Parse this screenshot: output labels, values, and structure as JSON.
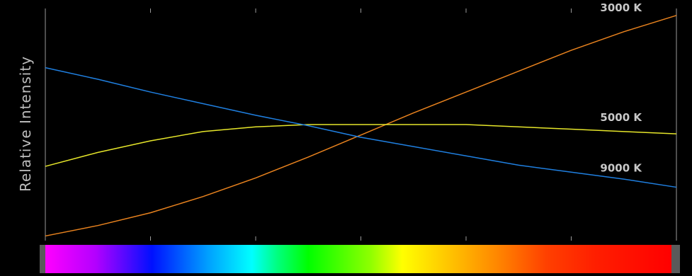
{
  "chart_data": {
    "type": "line",
    "ylabel": "Relative Intensity",
    "xlabel": "",
    "title": "",
    "xlim": [
      0,
      6
    ],
    "ylim": [
      0,
      10
    ],
    "x_ticks": 7,
    "grid": false,
    "background": "#000000",
    "spectrum_bar": true,
    "series": [
      {
        "name": "3000 K",
        "color": "#e8821e",
        "x": [
          0,
          0.5,
          1,
          1.5,
          2,
          2.5,
          3,
          3.5,
          4,
          4.5,
          5,
          5.5,
          6
        ],
        "y": [
          0.2,
          0.65,
          1.2,
          1.9,
          2.7,
          3.6,
          4.55,
          5.5,
          6.4,
          7.3,
          8.2,
          9.0,
          9.7
        ]
      },
      {
        "name": "5000 K",
        "color": "#e6e62a",
        "x": [
          0,
          0.5,
          1,
          1.5,
          2,
          2.5,
          3,
          3.5,
          4,
          4.5,
          5,
          5.5,
          6
        ],
        "y": [
          3.2,
          3.8,
          4.3,
          4.7,
          4.9,
          5.0,
          5.0,
          5.0,
          5.0,
          4.9,
          4.8,
          4.7,
          4.6
        ]
      },
      {
        "name": "9000 K",
        "color": "#1f7fe0",
        "x": [
          0,
          0.5,
          1,
          1.5,
          2,
          2.5,
          3,
          3.5,
          4,
          4.5,
          5,
          5.5,
          6
        ],
        "y": [
          7.45,
          6.95,
          6.4,
          5.9,
          5.4,
          4.95,
          4.45,
          4.05,
          3.65,
          3.25,
          2.95,
          2.65,
          2.3
        ]
      }
    ]
  }
}
